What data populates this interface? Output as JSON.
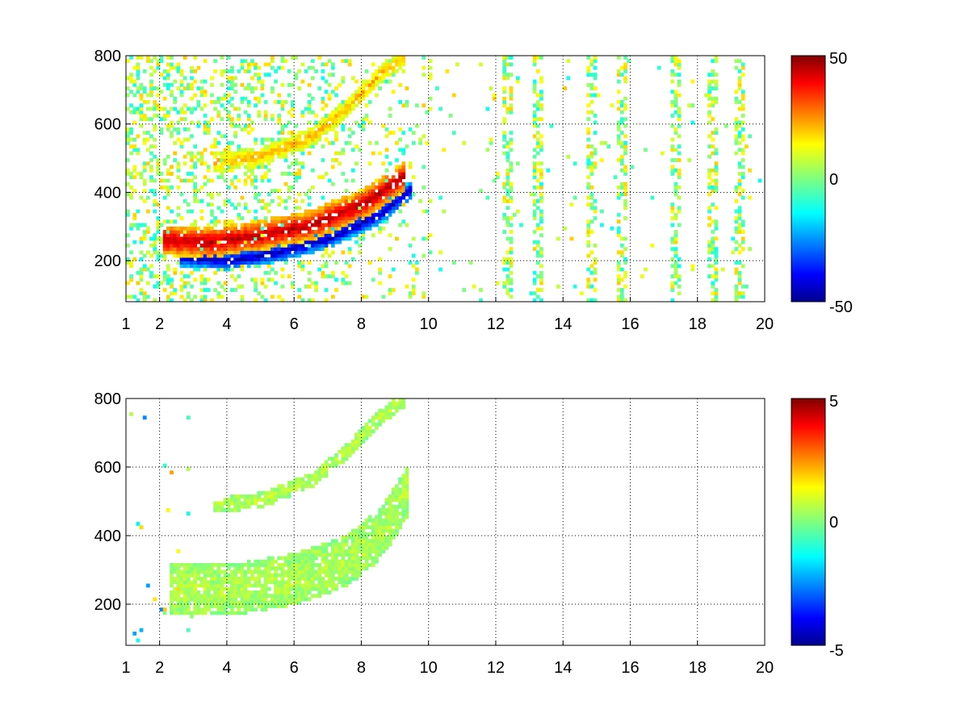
{
  "chart_data": [
    {
      "type": "heatmap",
      "title": "",
      "xlabel": "",
      "ylabel": "",
      "xlim": [
        1,
        20
      ],
      "ylim": [
        80,
        800
      ],
      "x_ticks": [
        "1",
        "2",
        "4",
        "6",
        "8",
        "10",
        "12",
        "14",
        "16",
        "18",
        "20"
      ],
      "y_ticks": [
        "200",
        "400",
        "600",
        "800"
      ],
      "grid": true,
      "colormap": "jet",
      "clim": [
        -50,
        50
      ],
      "colorbar_ticks": [
        "50",
        "0",
        "-50"
      ],
      "features": [
        {
          "name": "lower band, positive side",
          "x": [
            2.3,
            3.5,
            5,
            6.5,
            8,
            9.2
          ],
          "y": [
            255,
            250,
            270,
            300,
            360,
            440
          ],
          "value": 45
        },
        {
          "name": "lower band, negative side",
          "x": [
            2.8,
            4,
            5.5,
            7,
            8.5,
            9.4
          ],
          "y": [
            205,
            195,
            220,
            260,
            330,
            400
          ],
          "value": -45
        },
        {
          "name": "upper band",
          "x": [
            3.8,
            5,
            6.5,
            7.5,
            8.5,
            9.2
          ],
          "y": [
            485,
            500,
            560,
            640,
            740,
            790
          ],
          "value": 20
        }
      ],
      "noise_columns_x": [
        12.3,
        13.2,
        14.8,
        15.7,
        17.3,
        18.4,
        19.2
      ]
    },
    {
      "type": "heatmap",
      "title": "",
      "xlabel": "",
      "ylabel": "",
      "xlim": [
        1,
        20
      ],
      "ylim": [
        80,
        800
      ],
      "x_ticks": [
        "1",
        "2",
        "4",
        "6",
        "8",
        "10",
        "12",
        "14",
        "16",
        "18",
        "20"
      ],
      "y_ticks": [
        "200",
        "400",
        "600",
        "800"
      ],
      "grid": true,
      "colormap": "jet",
      "clim": [
        -5,
        5
      ],
      "colorbar_ticks": [
        "5",
        "0",
        "-5"
      ],
      "features": [
        {
          "name": "lower band",
          "x": [
            2.5,
            4,
            6,
            7.5,
            8.5,
            9.3
          ],
          "y": [
            240,
            235,
            270,
            320,
            400,
            520
          ],
          "value": 0.5
        },
        {
          "name": "upper band",
          "x": [
            3.8,
            5,
            6.5,
            7.5,
            8.5,
            9.2
          ],
          "y": [
            485,
            500,
            560,
            640,
            740,
            790
          ],
          "value": 0.6
        }
      ]
    }
  ]
}
